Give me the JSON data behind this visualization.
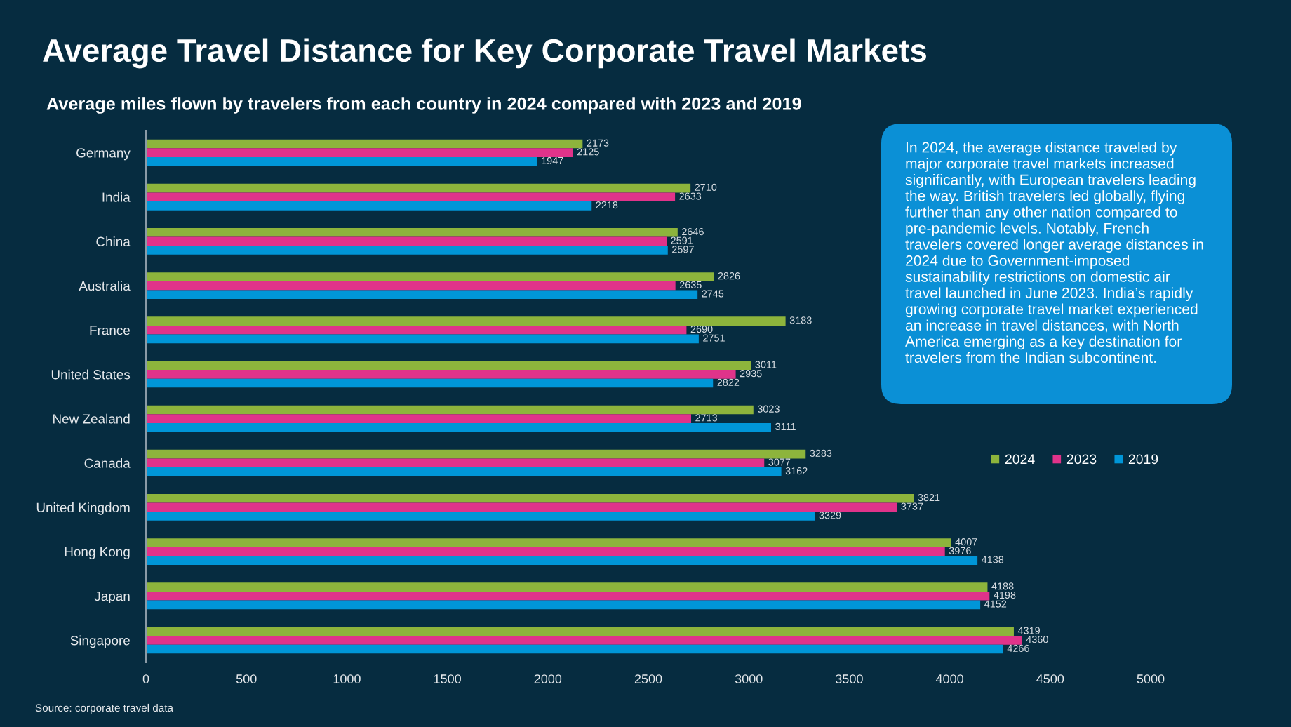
{
  "chart_data": {
    "type": "bar",
    "orientation": "horizontal",
    "title": "Average Travel Distance for Key Corporate Travel Markets",
    "subtitle": "Average miles flown by travelers from each country in 2024 compared with 2023 and 2019",
    "categories": [
      "Germany",
      "India",
      "China",
      "Australia",
      "France",
      "United States",
      "New Zealand",
      "Canada",
      "United Kingdom",
      "Hong Kong",
      "Japan",
      "Singapore"
    ],
    "series": [
      {
        "name": "2024",
        "color": "#8db43c",
        "values": [
          2173,
          2710,
          2646,
          2826,
          3183,
          3011,
          3023,
          3283,
          3821,
          4007,
          4188,
          4319
        ]
      },
      {
        "name": "2023",
        "color": "#e0338a",
        "values": [
          2125,
          2633,
          2591,
          2635,
          2690,
          2935,
          2713,
          3077,
          3737,
          3976,
          4198,
          4360
        ]
      },
      {
        "name": "2019",
        "color": "#0096d8",
        "values": [
          1947,
          2218,
          2597,
          2745,
          2751,
          2822,
          3111,
          3162,
          3329,
          4138,
          4152,
          4266
        ]
      }
    ],
    "xlim": [
      0,
      5000
    ],
    "xticks": [
      0,
      500,
      1000,
      1500,
      2000,
      2500,
      3000,
      3500,
      4000,
      4500,
      5000
    ],
    "data_labels": true,
    "legend": "right",
    "grid": false,
    "annotations": [
      "In 2024, the average distance traveled by major corporate travel markets increased significantly, with European travelers leading the way. British travelers led globally, flying further than any other nation compared to pre-pandemic levels. Notably, French travelers covered longer average distances in 2024 due to Government-imposed sustainability restrictions on domestic air travel launched in June 2023. India’s rapidly growing corporate travel market experienced an increase in travel distances, with North America emerging as a key destination for travelers from the Indian subcontinent.",
      "Source: corporate travel data"
    ]
  }
}
